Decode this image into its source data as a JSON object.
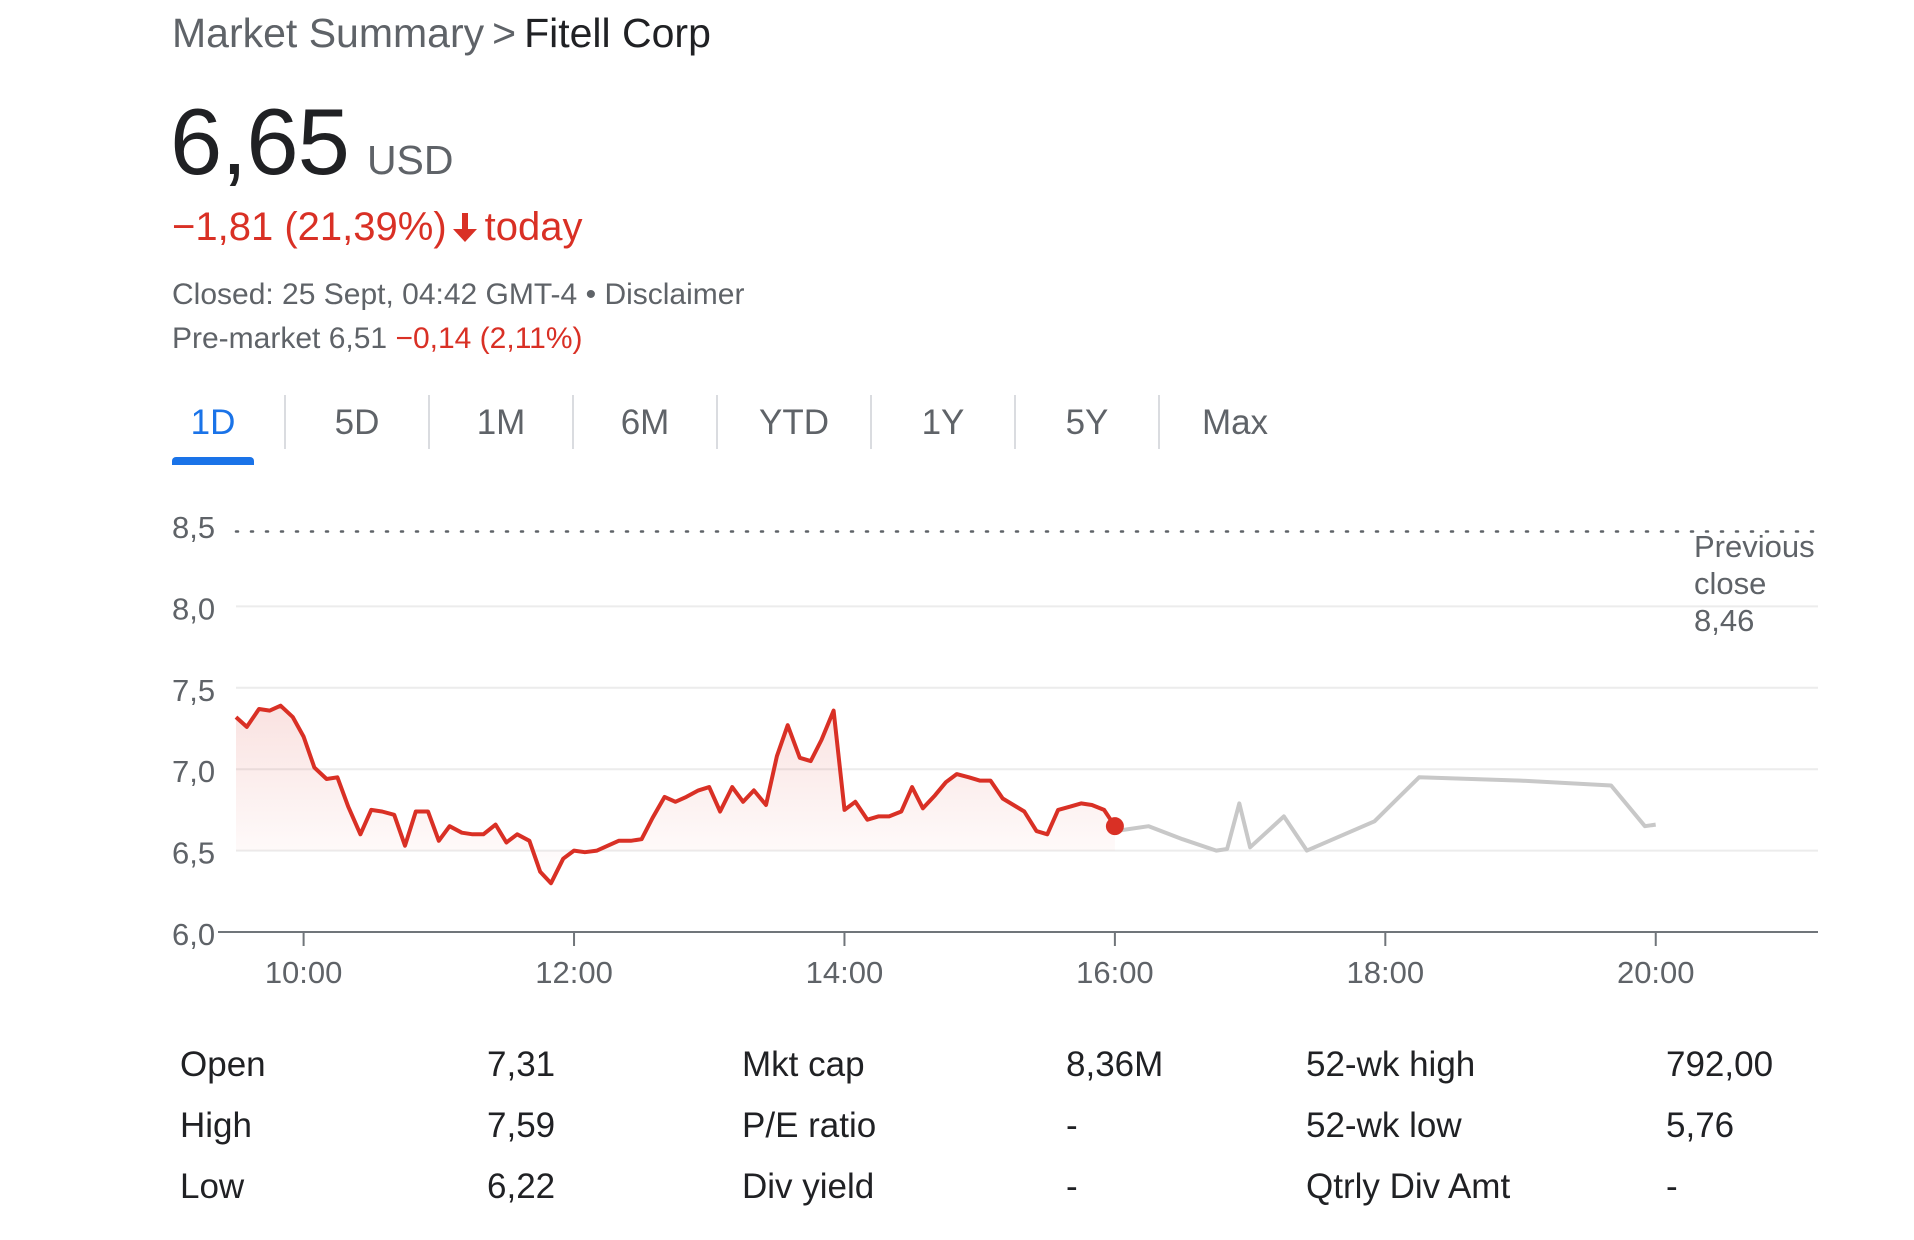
{
  "breadcrumb": {
    "root": "Market Summary",
    "separator": ">",
    "current": "Fitell Corp"
  },
  "quote": {
    "price": "6,65",
    "currency": "USD",
    "change": "−1,81",
    "change_pct": "(21,39%)",
    "change_period": "today",
    "status": "Closed: 25 Sept, 04:42 GMT-4",
    "status_dot": "•",
    "disclaimer": "Disclaimer",
    "premarket_label": "Pre-market",
    "premarket_price": "6,51",
    "premarket_change": "−0,14 (2,11%)"
  },
  "tabs": [
    "1D",
    "5D",
    "1M",
    "6M",
    "YTD",
    "1Y",
    "5Y",
    "Max"
  ],
  "active_tab": "1D",
  "colors": {
    "down": "#d93025",
    "afterhours": "#c8c8c8",
    "accent": "#1a73e8",
    "grid": "#ececec",
    "muted": "#5f6368"
  },
  "chart_data": {
    "type": "line",
    "x_unit": "hours",
    "xlim": [
      9.5,
      21.2
    ],
    "ylim": [
      6.0,
      8.5
    ],
    "y_ticks": [
      "6,0",
      "6,5",
      "7,0",
      "7,5",
      "8,0",
      "8,5"
    ],
    "y_tick_values": [
      6.0,
      6.5,
      7.0,
      7.5,
      8.0,
      8.5
    ],
    "x_ticks": [
      "10:00",
      "12:00",
      "14:00",
      "16:00",
      "18:00",
      "20:00"
    ],
    "x_tick_values": [
      10,
      12,
      14,
      16,
      18,
      20
    ],
    "previous_close": {
      "value": 8.46,
      "label": [
        "Previous",
        "close",
        "8,46"
      ]
    },
    "grid": true,
    "series": [
      {
        "id": "regular",
        "x": [
          9.5,
          9.58,
          9.67,
          9.75,
          9.83,
          9.92,
          10.0,
          10.08,
          10.17,
          10.25,
          10.33,
          10.42,
          10.5,
          10.58,
          10.67,
          10.75,
          10.83,
          10.92,
          11.0,
          11.08,
          11.17,
          11.25,
          11.33,
          11.42,
          11.5,
          11.58,
          11.67,
          11.75,
          11.83,
          11.92,
          12.0,
          12.08,
          12.17,
          12.25,
          12.33,
          12.42,
          12.5,
          12.58,
          12.67,
          12.75,
          12.83,
          12.92,
          13.0,
          13.08,
          13.17,
          13.25,
          13.33,
          13.42,
          13.5,
          13.58,
          13.67,
          13.75,
          13.83,
          13.92,
          14.0,
          14.08,
          14.17,
          14.25,
          14.33,
          14.42,
          14.5,
          14.58,
          14.67,
          14.75,
          14.83,
          14.92,
          15.0,
          15.08,
          15.17,
          15.25,
          15.33,
          15.42,
          15.5,
          15.58,
          15.67,
          15.75,
          15.83,
          15.92,
          16.0
        ],
        "y": [
          7.32,
          7.26,
          7.37,
          7.36,
          7.39,
          7.32,
          7.2,
          7.01,
          6.94,
          6.95,
          6.77,
          6.6,
          6.75,
          6.74,
          6.72,
          6.53,
          6.74,
          6.74,
          6.56,
          6.65,
          6.61,
          6.6,
          6.6,
          6.66,
          6.55,
          6.6,
          6.56,
          6.37,
          6.3,
          6.45,
          6.5,
          6.49,
          6.5,
          6.53,
          6.56,
          6.56,
          6.57,
          6.7,
          6.83,
          6.8,
          6.83,
          6.87,
          6.89,
          6.74,
          6.89,
          6.8,
          6.87,
          6.78,
          7.08,
          7.27,
          7.07,
          7.05,
          7.18,
          7.36,
          6.75,
          6.8,
          6.69,
          6.71,
          6.71,
          6.74,
          6.89,
          6.76,
          6.84,
          6.92,
          6.97,
          6.95,
          6.93,
          6.93,
          6.82,
          6.78,
          6.74,
          6.62,
          6.6,
          6.75,
          6.77,
          6.79,
          6.78,
          6.75,
          6.65
        ]
      },
      {
        "id": "after-hours",
        "x": [
          16.0,
          16.25,
          16.5,
          16.75,
          16.83,
          16.92,
          17.0,
          17.25,
          17.42,
          17.67,
          17.92,
          18.25,
          19.0,
          19.67,
          19.92,
          20.0
        ],
        "y": [
          6.62,
          6.65,
          6.57,
          6.5,
          6.51,
          6.79,
          6.52,
          6.71,
          6.5,
          6.59,
          6.68,
          6.95,
          6.93,
          6.9,
          6.65,
          6.66
        ]
      }
    ]
  },
  "stats": {
    "columns": [
      [
        {
          "label": "Open",
          "value": "7,31"
        },
        {
          "label": "High",
          "value": "7,59"
        },
        {
          "label": "Low",
          "value": "6,22"
        }
      ],
      [
        {
          "label": "Mkt cap",
          "value": "8,36M"
        },
        {
          "label": "P/E ratio",
          "value": "-"
        },
        {
          "label": "Div yield",
          "value": "-"
        }
      ],
      [
        {
          "label": "52-wk high",
          "value": "792,00"
        },
        {
          "label": "52-wk low",
          "value": "5,76"
        },
        {
          "label": "Qtrly Div Amt",
          "value": "-"
        }
      ]
    ]
  }
}
